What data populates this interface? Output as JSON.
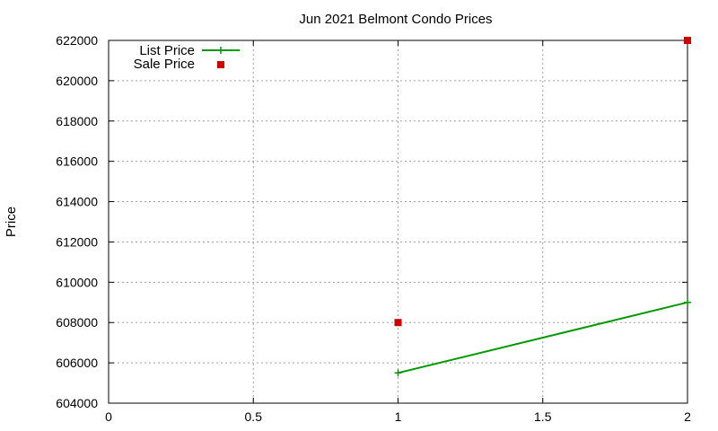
{
  "chart_data": {
    "type": "line",
    "title": "Jun 2021 Belmont Condo Prices",
    "xlabel": "",
    "ylabel": "Price",
    "xlim": [
      0,
      2
    ],
    "ylim": [
      604000,
      622000
    ],
    "x_ticks": [
      "0",
      "0.5",
      "1",
      "1.5",
      "2"
    ],
    "y_ticks": [
      "604000",
      "606000",
      "608000",
      "610000",
      "612000",
      "614000",
      "616000",
      "618000",
      "620000",
      "622000"
    ],
    "grid": true,
    "legend_position": "top-left",
    "series": [
      {
        "name": "List Price",
        "style": "line-cross",
        "color": "#009900",
        "points": [
          {
            "x": 1,
            "y": 605500
          },
          {
            "x": 2,
            "y": 609000
          }
        ]
      },
      {
        "name": "Sale Price",
        "style": "square",
        "color": "#cc0000",
        "points": [
          {
            "x": 1,
            "y": 608000
          },
          {
            "x": 2,
            "y": 622000
          }
        ]
      }
    ]
  }
}
